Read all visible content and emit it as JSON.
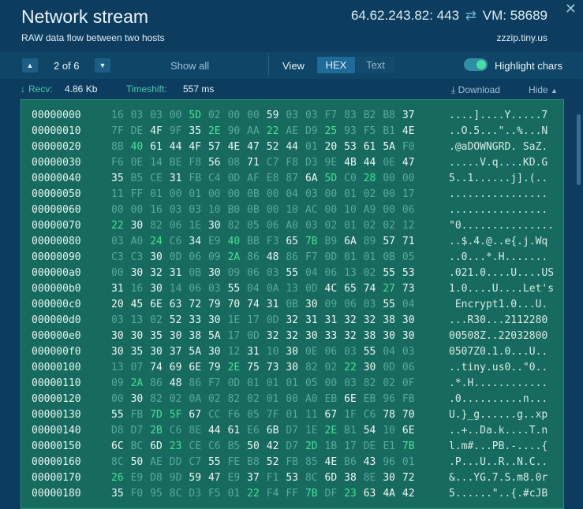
{
  "header": {
    "title": "Network stream",
    "subtitle": "RAW data flow between two hosts",
    "connection": "64.62.243.82: 443",
    "vm_label": "VM: 58689",
    "host": "zzzip.tiny.us",
    "close_glyph": "✕"
  },
  "toolbar": {
    "prev_glyph": "▲",
    "next_glyph": "▼",
    "page_info": "2 of 6",
    "show_all": "Show all",
    "view_label": "View",
    "view_hex": "HEX",
    "view_text": "Text",
    "highlight_label": "Highlight chars",
    "highlight_on": true
  },
  "info": {
    "recv_label": "Recv:",
    "recv_value": "4.86 Kb",
    "timeshift_label": "Timeshift:",
    "timeshift_value": "557 ms",
    "download_label": "Download",
    "hide_label": "Hide"
  },
  "colors": {
    "background": "#0d3d5e",
    "panel": "#176a5e",
    "accent": "#45e093",
    "low_byte": "#5aa89a"
  },
  "hex_rows": [
    {
      "offset": "00000000",
      "bytes": [
        "16",
        "03",
        "03",
        "00",
        "5D",
        "02",
        "00",
        "00",
        "59",
        "03",
        "03",
        "F7",
        "83",
        "B2",
        "B8",
        "37"
      ],
      "ascii": "....]....Y.....7"
    },
    {
      "offset": "00000010",
      "bytes": [
        "7F",
        "DE",
        "4F",
        "9F",
        "35",
        "2E",
        "90",
        "AA",
        "22",
        "AE",
        "D9",
        "25",
        "93",
        "F5",
        "B1",
        "4E"
      ],
      "ascii": "..O.5...\"..%...N"
    },
    {
      "offset": "00000020",
      "bytes": [
        "8B",
        "40",
        "61",
        "44",
        "4F",
        "57",
        "4E",
        "47",
        "52",
        "44",
        "01",
        "20",
        "53",
        "61",
        "5A",
        "F0"
      ],
      "ascii": ".@aDOWNGRD. SaZ."
    },
    {
      "offset": "00000030",
      "bytes": [
        "F6",
        "0E",
        "14",
        "BE",
        "F8",
        "56",
        "08",
        "71",
        "C7",
        "F8",
        "D3",
        "9E",
        "4B",
        "44",
        "0E",
        "47"
      ],
      "ascii": ".....V.q....KD.G"
    },
    {
      "offset": "00000040",
      "bytes": [
        "35",
        "B5",
        "CE",
        "31",
        "FB",
        "C4",
        "0D",
        "AF",
        "E8",
        "87",
        "6A",
        "5D",
        "C0",
        "28",
        "00",
        "00"
      ],
      "ascii": "5..1......j].(.."
    },
    {
      "offset": "00000050",
      "bytes": [
        "11",
        "FF",
        "01",
        "00",
        "01",
        "00",
        "00",
        "0B",
        "00",
        "04",
        "03",
        "00",
        "01",
        "02",
        "00",
        "17"
      ],
      "ascii": "................"
    },
    {
      "offset": "00000060",
      "bytes": [
        "00",
        "00",
        "16",
        "03",
        "03",
        "10",
        "B0",
        "0B",
        "00",
        "10",
        "AC",
        "00",
        "10",
        "A9",
        "00",
        "06"
      ],
      "ascii": "................"
    },
    {
      "offset": "00000070",
      "bytes": [
        "22",
        "30",
        "82",
        "06",
        "1E",
        "30",
        "82",
        "05",
        "06",
        "A0",
        "03",
        "02",
        "01",
        "02",
        "02",
        "12"
      ],
      "ascii": "\"0..............."
    },
    {
      "offset": "00000080",
      "bytes": [
        "03",
        "A0",
        "24",
        "C6",
        "34",
        "E9",
        "40",
        "BB",
        "F3",
        "65",
        "7B",
        "B9",
        "6A",
        "89",
        "57",
        "71"
      ],
      "ascii": "..$.4.@..e{.j.Wq"
    },
    {
      "offset": "00000090",
      "bytes": [
        "C3",
        "C3",
        "30",
        "0D",
        "06",
        "09",
        "2A",
        "86",
        "48",
        "86",
        "F7",
        "0D",
        "01",
        "01",
        "0B",
        "05"
      ],
      "ascii": "..0...*.H......."
    },
    {
      "offset": "000000a0",
      "bytes": [
        "00",
        "30",
        "32",
        "31",
        "0B",
        "30",
        "09",
        "06",
        "03",
        "55",
        "04",
        "06",
        "13",
        "02",
        "55",
        "53"
      ],
      "ascii": ".021.0....U....US"
    },
    {
      "offset": "000000b0",
      "bytes": [
        "31",
        "16",
        "30",
        "14",
        "06",
        "03",
        "55",
        "04",
        "0A",
        "13",
        "0D",
        "4C",
        "65",
        "74",
        "27",
        "73"
      ],
      "ascii": "1.0....U....Let's"
    },
    {
      "offset": "000000c0",
      "bytes": [
        "20",
        "45",
        "6E",
        "63",
        "72",
        "79",
        "70",
        "74",
        "31",
        "0B",
        "30",
        "09",
        "06",
        "03",
        "55",
        "04"
      ],
      "ascii": " Encrypt1.0...U."
    },
    {
      "offset": "000000d0",
      "bytes": [
        "03",
        "13",
        "02",
        "52",
        "33",
        "30",
        "1E",
        "17",
        "0D",
        "32",
        "31",
        "31",
        "32",
        "32",
        "38",
        "30"
      ],
      "ascii": "...R30...2112280"
    },
    {
      "offset": "000000e0",
      "bytes": [
        "30",
        "30",
        "35",
        "30",
        "38",
        "5A",
        "17",
        "0D",
        "32",
        "32",
        "30",
        "33",
        "32",
        "38",
        "30",
        "30"
      ],
      "ascii": "00508Z..22032800"
    },
    {
      "offset": "000000f0",
      "bytes": [
        "30",
        "35",
        "30",
        "37",
        "5A",
        "30",
        "12",
        "31",
        "10",
        "30",
        "0E",
        "06",
        "03",
        "55",
        "04",
        "03"
      ],
      "ascii": "0507Z0.1.0...U.."
    },
    {
      "offset": "00000100",
      "bytes": [
        "13",
        "07",
        "74",
        "69",
        "6E",
        "79",
        "2E",
        "75",
        "73",
        "30",
        "82",
        "02",
        "22",
        "30",
        "0D",
        "06"
      ],
      "ascii": "..tiny.us0..\"0.."
    },
    {
      "offset": "00000110",
      "bytes": [
        "09",
        "2A",
        "86",
        "48",
        "86",
        "F7",
        "0D",
        "01",
        "01",
        "01",
        "05",
        "00",
        "03",
        "82",
        "02",
        "0F"
      ],
      "ascii": ".*.H............"
    },
    {
      "offset": "00000120",
      "bytes": [
        "00",
        "30",
        "82",
        "02",
        "0A",
        "02",
        "82",
        "02",
        "01",
        "00",
        "A0",
        "EB",
        "6E",
        "EB",
        "96",
        "FB"
      ],
      "ascii": ".0..........n..."
    },
    {
      "offset": "00000130",
      "bytes": [
        "55",
        "FB",
        "7D",
        "5F",
        "67",
        "CC",
        "F6",
        "05",
        "7F",
        "01",
        "11",
        "67",
        "1F",
        "C6",
        "78",
        "70"
      ],
      "ascii": "U.}_g......g..xp"
    },
    {
      "offset": "00000140",
      "bytes": [
        "D8",
        "D7",
        "2B",
        "C6",
        "8E",
        "44",
        "61",
        "E6",
        "6B",
        "D7",
        "1E",
        "2E",
        "B1",
        "54",
        "10",
        "6E"
      ],
      "ascii": "..+..Da.k....T.n"
    },
    {
      "offset": "00000150",
      "bytes": [
        "6C",
        "BC",
        "6D",
        "23",
        "CE",
        "C6",
        "B5",
        "50",
        "42",
        "D7",
        "2D",
        "1B",
        "17",
        "DE",
        "E1",
        "7B"
      ],
      "ascii": "l.m#...PB.-....{"
    },
    {
      "offset": "00000160",
      "bytes": [
        "8C",
        "50",
        "AE",
        "DD",
        "C7",
        "55",
        "FE",
        "B8",
        "52",
        "FB",
        "85",
        "4E",
        "B6",
        "43",
        "96",
        "01"
      ],
      "ascii": ".P...U..R..N.C.."
    },
    {
      "offset": "00000170",
      "bytes": [
        "26",
        "E9",
        "D8",
        "9D",
        "59",
        "47",
        "E9",
        "37",
        "F1",
        "53",
        "8C",
        "6D",
        "38",
        "8E",
        "30",
        "72"
      ],
      "ascii": "&...YG.7.S.m8.0r"
    },
    {
      "offset": "00000180",
      "bytes": [
        "35",
        "F0",
        "95",
        "8C",
        "D3",
        "F5",
        "01",
        "22",
        "F4",
        "FF",
        "7B",
        "DF",
        "23",
        "63",
        "4A",
        "42"
      ],
      "ascii": "5......\"..{.#cJB"
    }
  ]
}
